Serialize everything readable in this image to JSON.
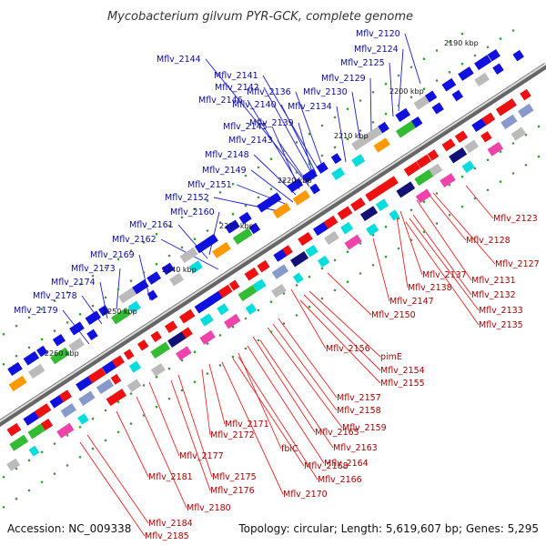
{
  "title": "Mycobacterium gilvum PYR-GCK, complete genome",
  "footer": {
    "accession": "Accession: NC_009338",
    "summary": "Topology: circular; Length: 5,619,607 bp; Genes: 5,295"
  },
  "colors": {
    "backbone": "#777777",
    "forward_genes": "#ee1111",
    "reverse_genes": "#1111dd",
    "tick": "#118811",
    "label_blue": "#0a0a99",
    "label_red": "#aa0000"
  },
  "position_ticks": [
    "2190 kbp",
    "2200 kbp",
    "2210 kbp",
    "2220 kbp",
    "2230 kbp",
    "2240 kbp",
    "2250 kbp",
    "2260 kbp"
  ],
  "gene_labels_reverse": [
    "Mflv_2120",
    "Mflv_2124",
    "Mflv_2125",
    "Mflv_2129",
    "Mflv_2130",
    "Mflv_2134",
    "Mflv_2136",
    "Mflv_2139",
    "Mflv_2140",
    "Mflv_2141",
    "Mflv_2142",
    "Mflv_2143",
    "Mflv_2144",
    "Mflv_2145",
    "Mflv_2146",
    "Mflv_2148",
    "Mflv_2149",
    "Mflv_2151",
    "Mflv_2152",
    "Mflv_2160",
    "Mflv_2161",
    "Mflv_2162",
    "Mflv_2169",
    "Mflv_2173",
    "Mflv_2174",
    "Mflv_2178",
    "Mflv_2179"
  ],
  "gene_labels_forward": [
    "Mflv_2123",
    "Mflv_2128",
    "Mflv_2127",
    "Mflv_2131",
    "Mflv_2137",
    "Mflv_2138",
    "Mflv_2132",
    "Mflv_2133",
    "Mflv_2135",
    "Mflv_2147",
    "Mflv_2150",
    "Mflv_2156",
    "pimE",
    "Mflv_2154",
    "Mflv_2155",
    "Mflv_2157",
    "Mflv_2158",
    "Mflv_2159",
    "Mflv_2165",
    "Mflv_2171",
    "Mflv_2172",
    "Mflv_2163",
    "fbiC",
    "Mflv_2164",
    "Mflv_2168",
    "Mflv_2166",
    "Mflv_2177",
    "Mflv_2175",
    "Mflv_2170",
    "Mflv_2181",
    "Mflv_2176",
    "Mflv_2180",
    "Mflv_2184",
    "Mflv_2185"
  ]
}
